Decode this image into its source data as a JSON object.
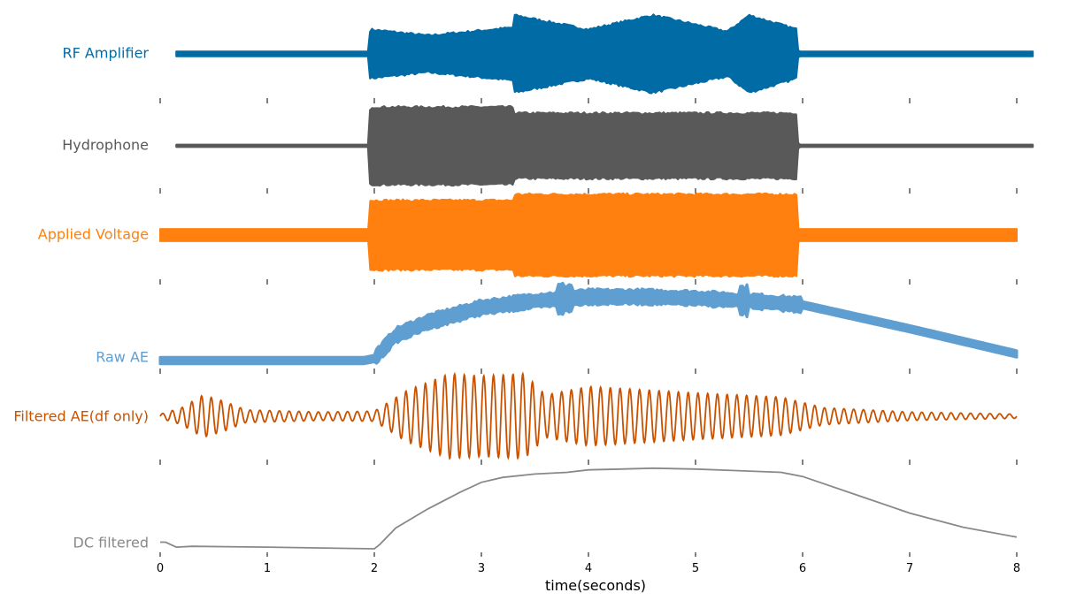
{
  "chart_data": {
    "type": "line",
    "title": "",
    "xlabel": "time(seconds)",
    "ylabel": "",
    "xlim": [
      0,
      8
    ],
    "x_ticks": [
      "0",
      "1",
      "2",
      "3",
      "4",
      "5",
      "6",
      "7",
      "8"
    ],
    "grid": false,
    "legend": "none",
    "series": [
      {
        "name": "RF Amplifier",
        "color": "#006BA4",
        "style": "band",
        "x_range": [
          0.15,
          8.15
        ],
        "envelope_x": [
          0.15,
          1.95,
          1.96,
          2.5,
          3.3,
          3.31,
          4.0,
          4.6,
          5.3,
          5.5,
          5.95,
          5.96,
          8.15
        ],
        "envelope_half_amplitude": [
          0.06,
          0.06,
          0.6,
          0.45,
          0.65,
          0.95,
          0.6,
          0.95,
          0.55,
          0.95,
          0.6,
          0.06,
          0.06
        ]
      },
      {
        "name": "Hydrophone",
        "color": "#595959",
        "style": "band",
        "x_range": [
          0.15,
          8.15
        ],
        "envelope_x": [
          0.15,
          1.95,
          1.96,
          3.3,
          3.31,
          5.95,
          5.96,
          8.15
        ],
        "envelope_half_amplitude": [
          0.03,
          0.03,
          0.95,
          0.95,
          0.8,
          0.8,
          0.03,
          0.03
        ]
      },
      {
        "name": "Applied Voltage",
        "color": "#FF800E",
        "style": "band",
        "x_range": [
          0.0,
          8.0
        ],
        "envelope_x": [
          0.0,
          1.95,
          1.96,
          3.3,
          3.31,
          5.95,
          5.96,
          8.0
        ],
        "envelope_half_amplitude": [
          0.15,
          0.15,
          0.85,
          0.85,
          1.0,
          1.0,
          0.15,
          0.15
        ]
      },
      {
        "name": "Raw AE",
        "color": "#5F9ED1",
        "style": "band",
        "x": [
          0,
          1.9,
          2.0,
          2.2,
          2.5,
          3.0,
          3.5,
          4.0,
          4.5,
          5.0,
          5.5,
          6.0,
          7.0,
          8.0
        ],
        "y": [
          0.0,
          0.0,
          0.03,
          0.38,
          0.58,
          0.8,
          0.9,
          0.96,
          0.96,
          0.94,
          0.9,
          0.84,
          0.48,
          0.1
        ],
        "band_half_width": 0.05
      },
      {
        "name": "Filtered AE(df only)",
        "color": "#C85200",
        "style": "oscillation",
        "x_range": [
          0.0,
          8.0
        ],
        "frequency_hz": 11,
        "envelope_x": [
          0.0,
          0.2,
          0.4,
          0.6,
          0.8,
          1.5,
          2.0,
          2.3,
          2.7,
          3.0,
          3.4,
          3.6,
          4.0,
          5.0,
          5.8,
          6.2,
          7.0,
          8.0
        ],
        "envelope_amplitude": [
          0.05,
          0.2,
          0.5,
          0.35,
          0.15,
          0.1,
          0.12,
          0.6,
          1.0,
          0.95,
          1.0,
          0.5,
          0.7,
          0.55,
          0.45,
          0.2,
          0.1,
          0.05
        ]
      },
      {
        "name": "DC filtered",
        "color": "#898989",
        "style": "line",
        "x": [
          0.0,
          0.05,
          0.1,
          0.15,
          0.3,
          1.0,
          2.0,
          2.05,
          2.2,
          2.5,
          2.8,
          3.0,
          3.2,
          3.5,
          3.8,
          4.0,
          4.3,
          4.6,
          5.0,
          5.4,
          5.8,
          6.0,
          6.5,
          7.0,
          7.5,
          8.0
        ],
        "y": [
          0.08,
          0.08,
          0.05,
          0.02,
          0.03,
          0.02,
          0.0,
          0.05,
          0.25,
          0.48,
          0.68,
          0.8,
          0.86,
          0.9,
          0.92,
          0.95,
          0.96,
          0.97,
          0.96,
          0.94,
          0.92,
          0.87,
          0.65,
          0.43,
          0.26,
          0.14
        ]
      }
    ]
  }
}
